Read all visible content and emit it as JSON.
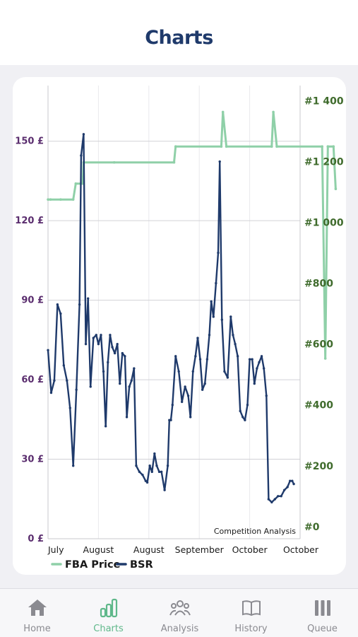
{
  "header": {
    "title": "Charts"
  },
  "chart_data": {
    "type": "line",
    "annotation": "Competition Analysis",
    "legend_position": "bottom-left",
    "x_tick_labels": [
      "July",
      "August",
      "August",
      "September",
      "October",
      "October"
    ],
    "y_left": {
      "ticks": [
        "0 £",
        "30 £",
        "60 £",
        "90 £",
        "120 £",
        "150 £"
      ],
      "range": [
        0,
        171
      ]
    },
    "y_right": {
      "ticks": [
        "#0",
        "#200",
        "#400",
        "#600",
        "#800",
        "#1 000",
        "#1 200",
        "#1 400"
      ],
      "range": [
        -40,
        1450
      ]
    },
    "series": [
      {
        "name": "FBA Price",
        "axis": "left",
        "color": "#8fd0a8",
        "points": [
          [
            0,
            128
          ],
          [
            0.8,
            128
          ],
          [
            4,
            128
          ],
          [
            8,
            128
          ],
          [
            8.8,
            134
          ],
          [
            11,
            134
          ],
          [
            11.3,
            142
          ],
          [
            21,
            142
          ],
          [
            40,
            142
          ],
          [
            40.5,
            148
          ],
          [
            55,
            148
          ],
          [
            55.5,
            161
          ],
          [
            56.6,
            148
          ],
          [
            71,
            148
          ],
          [
            71.5,
            161
          ],
          [
            72.6,
            148
          ],
          [
            87,
            148
          ],
          [
            88,
            68
          ],
          [
            88.8,
            148
          ],
          [
            90.6,
            148
          ],
          [
            91.3,
            132
          ]
        ]
      },
      {
        "name": "BSR",
        "axis": "right",
        "color": "#1f3a6b",
        "points": [
          [
            0,
            580
          ],
          [
            1,
            440
          ],
          [
            2,
            480
          ],
          [
            3,
            730
          ],
          [
            4,
            700
          ],
          [
            5,
            530
          ],
          [
            6,
            480
          ],
          [
            7,
            390
          ],
          [
            8,
            200
          ],
          [
            9,
            450
          ],
          [
            10,
            730
          ],
          [
            10.5,
            1220
          ],
          [
            11.3,
            1290
          ],
          [
            12,
            600
          ],
          [
            12.7,
            750
          ],
          [
            13.5,
            460
          ],
          [
            14.4,
            620
          ],
          [
            15.3,
            630
          ],
          [
            16,
            600
          ],
          [
            16.8,
            630
          ],
          [
            17.6,
            510
          ],
          [
            18.3,
            330
          ],
          [
            19,
            540
          ],
          [
            19.7,
            630
          ],
          [
            20.4,
            590
          ],
          [
            21.2,
            570
          ],
          [
            22,
            600
          ],
          [
            22.8,
            470
          ],
          [
            23.6,
            570
          ],
          [
            24.4,
            560
          ],
          [
            25,
            360
          ],
          [
            25.8,
            460
          ],
          [
            26.5,
            480
          ],
          [
            27.3,
            520
          ],
          [
            28,
            200
          ],
          [
            29,
            180
          ],
          [
            30,
            170
          ],
          [
            31,
            150
          ],
          [
            31.5,
            145
          ],
          [
            32.3,
            200
          ],
          [
            33,
            180
          ],
          [
            33.8,
            240
          ],
          [
            34.5,
            200
          ],
          [
            35.3,
            180
          ],
          [
            36,
            180
          ],
          [
            37,
            120
          ],
          [
            38,
            200
          ],
          [
            38.5,
            350
          ],
          [
            39,
            350
          ],
          [
            39.5,
            400
          ],
          [
            40.5,
            560
          ],
          [
            41.5,
            510
          ],
          [
            42.5,
            410
          ],
          [
            43.5,
            460
          ],
          [
            44.5,
            430
          ],
          [
            45.2,
            360
          ],
          [
            46,
            510
          ],
          [
            46.8,
            560
          ],
          [
            47.5,
            620
          ],
          [
            48.3,
            550
          ],
          [
            49,
            450
          ],
          [
            49.8,
            470
          ],
          [
            50.5,
            550
          ],
          [
            51.2,
            630
          ],
          [
            51.8,
            740
          ],
          [
            52.5,
            690
          ],
          [
            53.3,
            800
          ],
          [
            54,
            900
          ],
          [
            54.5,
            1200
          ],
          [
            55.2,
            680
          ],
          [
            56,
            510
          ],
          [
            57,
            490
          ],
          [
            58,
            690
          ],
          [
            58.7,
            630
          ],
          [
            59.4,
            600
          ],
          [
            60.2,
            560
          ],
          [
            61,
            380
          ],
          [
            61.8,
            360
          ],
          [
            62.5,
            350
          ],
          [
            63.3,
            400
          ],
          [
            64,
            550
          ],
          [
            64.8,
            550
          ],
          [
            65.5,
            470
          ],
          [
            66.3,
            520
          ],
          [
            67,
            540
          ],
          [
            67.8,
            560
          ],
          [
            68.5,
            520
          ],
          [
            69.3,
            430
          ],
          [
            70,
            90
          ],
          [
            71,
            80
          ],
          [
            72,
            90
          ],
          [
            73,
            100
          ],
          [
            74,
            100
          ],
          [
            75,
            120
          ],
          [
            76,
            130
          ],
          [
            76.8,
            150
          ],
          [
            77.5,
            150
          ],
          [
            78,
            140
          ]
        ]
      }
    ]
  },
  "tabs": [
    {
      "label": "Home",
      "icon": "home-icon",
      "active": false
    },
    {
      "label": "Charts",
      "icon": "bar-chart-icon",
      "active": true
    },
    {
      "label": "Analysis",
      "icon": "people-icon",
      "active": false
    },
    {
      "label": "History",
      "icon": "book-icon",
      "active": false
    },
    {
      "label": "Queue",
      "icon": "queue-icon",
      "active": false
    }
  ],
  "colors": {
    "title": "#1f3a6b",
    "active_tab": "#5fb88a",
    "left_axis": "#5a2d6e",
    "right_axis": "#3f6b2c"
  }
}
